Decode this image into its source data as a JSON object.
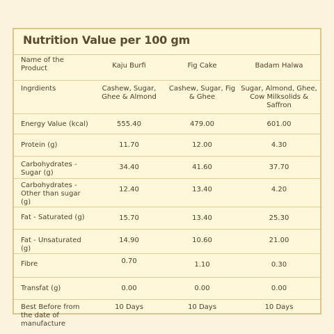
{
  "title": "Nutrition Value per 100 gm",
  "header": [
    "Name of the Product",
    "Kaju Burfi",
    "Fig Cake",
    "Badam Halwa"
  ],
  "rows": [
    [
      "Ingrdients",
      "Cashew, Sugar, Ghee & Almond",
      "Cashew, Sugar, Fig & Ghee",
      "Sugar, Almond, Ghee, Cow Milksolids & Saffron"
    ],
    [
      "Energy Value (kcal)",
      "555.40",
      "479.00",
      "601.00"
    ],
    [
      "Protein (g)",
      "11.70",
      "12.00",
      "4.30"
    ],
    [
      "Carbohydrates - Sugar (g)",
      "34.40",
      "41.60",
      "37.70"
    ],
    [
      "Carbohydrates - Other than sugar (g)",
      "12.40",
      "13.40",
      "4.20"
    ],
    [
      "Fat - Saturated (g)",
      "15.70",
      "13.40",
      "25.30"
    ],
    [
      "Fat - Unsaturated (g)",
      "14.90",
      "10.60",
      "21.00"
    ],
    [
      "Fibre",
      "0.70",
      "1.10",
      "0.30"
    ],
    [
      "Transfat (g)",
      "0.00",
      "0.00",
      "0.00"
    ],
    [
      "Best Before from the date of manufacture",
      "10 Days",
      "10 Days",
      "10 Days"
    ]
  ]
}
